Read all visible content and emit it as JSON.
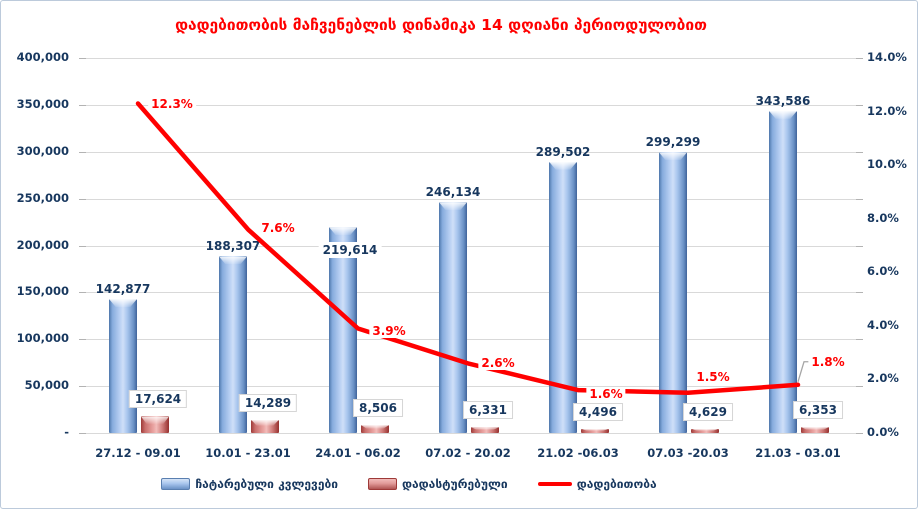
{
  "chart_data": {
    "type": "combo-bar-line",
    "title": "დადებითობის მაჩვენებლის დინამიკა 14 დღიანი პერიოდულობით",
    "categories": [
      "27.12 - 09.01",
      "10.01 - 23.01",
      "24.01 - 06.02",
      "07.02 - 20.02",
      "21.02 -06.03",
      "07.03 -20.03",
      "21.03 - 03.01"
    ],
    "series": [
      {
        "name": "ჩატარებული კვლევები",
        "type": "bar",
        "axis": "left",
        "color": "#6f9bd1",
        "values": [
          142877,
          188307,
          219614,
          246134,
          289502,
          299299,
          343586
        ],
        "value_labels": [
          "142,877",
          "188,307",
          "219,614",
          "246,134",
          "289,502",
          "299,299",
          "343,586"
        ]
      },
      {
        "name": "დადასტურებული",
        "type": "bar",
        "axis": "left",
        "color": "#c0504d",
        "values": [
          17624,
          14289,
          8506,
          6331,
          4496,
          4629,
          6353
        ],
        "value_labels": [
          "17,624",
          "14,289",
          "8,506",
          "6,331",
          "4,496",
          "4,629",
          "6,353"
        ]
      },
      {
        "name": "დადებითობა",
        "type": "line",
        "axis": "right",
        "color": "#ff0000",
        "values": [
          12.3,
          7.6,
          3.9,
          2.6,
          1.6,
          1.5,
          1.8
        ],
        "value_labels": [
          "12.3%",
          "7.6%",
          "3.9%",
          "2.6%",
          "1.6%",
          "1.5%",
          "1.8%"
        ]
      }
    ],
    "left_axis": {
      "min": 0,
      "max": 400000,
      "step": 50000,
      "tick_labels": [
        "400,000",
        "350,000",
        "300,000",
        "250,000",
        "200,000",
        "150,000",
        "100,000",
        "50,000",
        "-"
      ]
    },
    "right_axis": {
      "min": 0,
      "max": 14,
      "step": 2,
      "tick_labels": [
        "14.0%",
        "12.0%",
        "10.0%",
        "8.0%",
        "6.0%",
        "4.0%",
        "2.0%",
        "0.0%"
      ]
    },
    "grid": true,
    "legend_position": "bottom",
    "colors": {
      "title": "#ff0000",
      "axis_text": "#17375e",
      "grid": "#d9d9d9",
      "line": "#ff0000",
      "bar_blue": "#6f9bd1",
      "bar_red": "#c0504d"
    }
  }
}
